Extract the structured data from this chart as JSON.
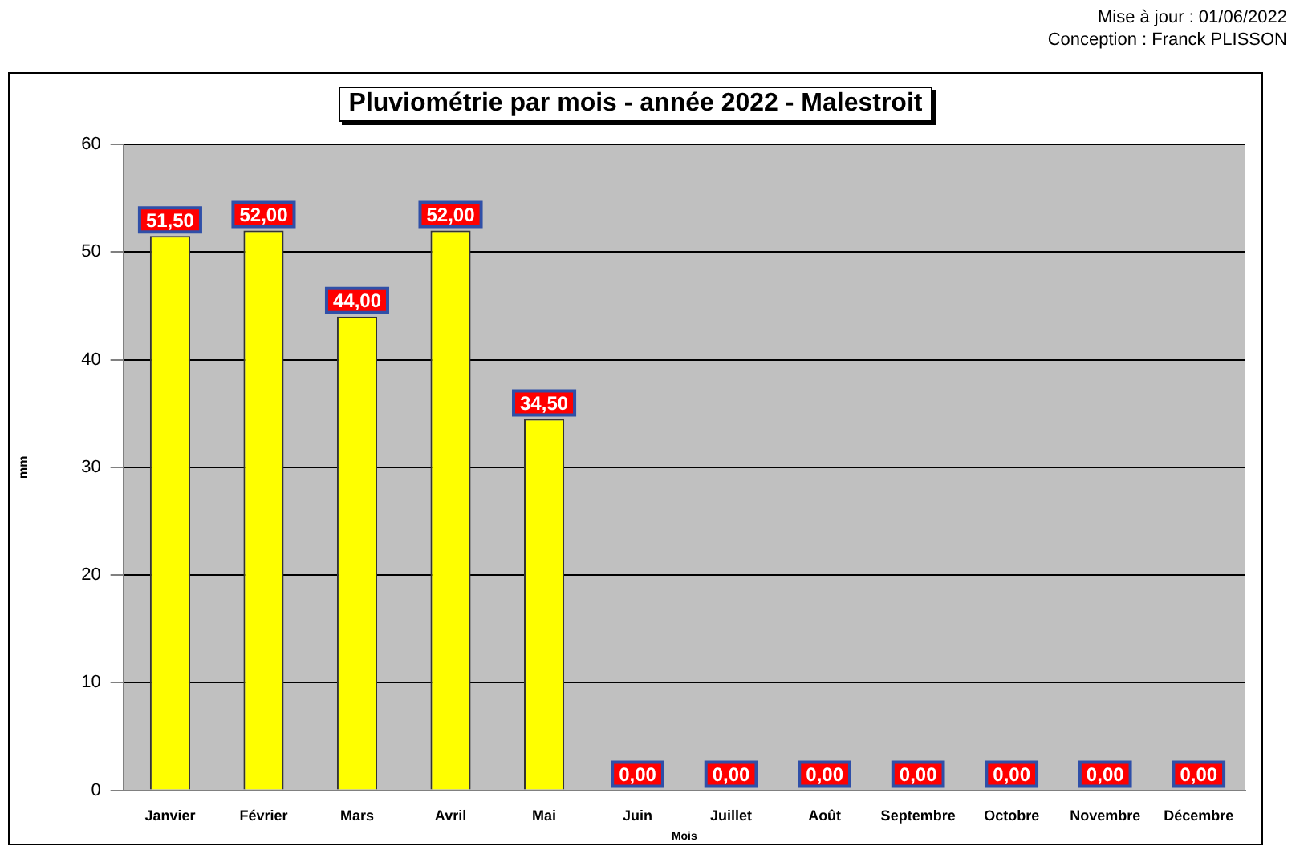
{
  "chart_data": {
    "type": "bar",
    "title": "Pluviométrie par mois - année 2022 - Malestroit",
    "xlabel": "Mois",
    "ylabel": "mm",
    "categories": [
      "Janvier",
      "Février",
      "Mars",
      "Avril",
      "Mai",
      "Juin",
      "Juillet",
      "Août",
      "Septembre",
      "Octobre",
      "Novembre",
      "Décembre"
    ],
    "values": [
      51.5,
      52,
      44,
      52,
      34.5,
      0,
      0,
      0,
      0,
      0,
      0,
      0
    ],
    "value_labels": [
      "51,50",
      "52,00",
      "44,00",
      "52,00",
      "34,50",
      "0,00",
      "0,00",
      "0,00",
      "0,00",
      "0,00",
      "0,00",
      "0,00"
    ],
    "color": "#ffff00",
    "ylim": [
      0,
      60
    ],
    "yticks": [
      0,
      10,
      20,
      30,
      40,
      50,
      60
    ],
    "grid": "y",
    "legend": false,
    "annotations": [
      "Mise à jour : 01/06/2022",
      "Conception : Franck PLISSON"
    ]
  }
}
